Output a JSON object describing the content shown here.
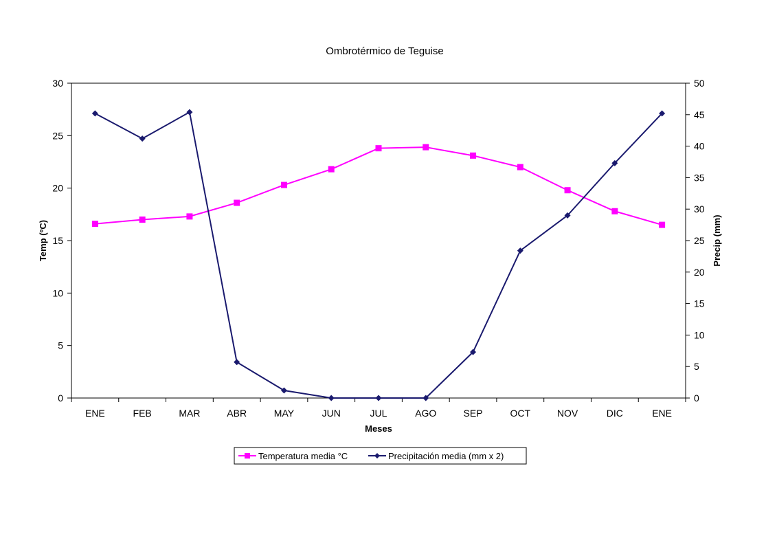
{
  "chart_data": {
    "type": "line",
    "title": "Ombrotérmico de Teguise",
    "xlabel": "Meses",
    "ylabel_left": "Temp (ºC)",
    "ylabel_right": "Precip (mm)",
    "categories": [
      "ENE",
      "FEB",
      "MAR",
      "ABR",
      "MAY",
      "JUN",
      "JUL",
      "AGO",
      "SEP",
      "OCT",
      "NOV",
      "DIC",
      "ENE"
    ],
    "y_left_lim": [
      0,
      30
    ],
    "y_left_ticks": [
      0,
      5,
      10,
      15,
      20,
      25,
      30
    ],
    "y_right_lim": [
      0,
      50
    ],
    "y_right_ticks": [
      0,
      5,
      10,
      15,
      20,
      25,
      30,
      35,
      40,
      45,
      50
    ],
    "grid": false,
    "legend_position": "bottom",
    "series": [
      {
        "name": "Temperatura media °C",
        "axis": "left",
        "color": "#ff00ff",
        "marker": "square",
        "values": [
          16.6,
          17.0,
          17.3,
          18.6,
          20.3,
          21.8,
          23.8,
          23.9,
          23.1,
          22.0,
          19.8,
          17.8,
          16.5
        ]
      },
      {
        "name": "Precipitación media (mm x 2)",
        "axis": "right",
        "color": "#1a1a6e",
        "marker": "diamond",
        "values": [
          45.2,
          41.2,
          45.4,
          5.7,
          1.2,
          0,
          0,
          0,
          7.3,
          23.4,
          29.0,
          37.3,
          45.2
        ]
      }
    ]
  }
}
